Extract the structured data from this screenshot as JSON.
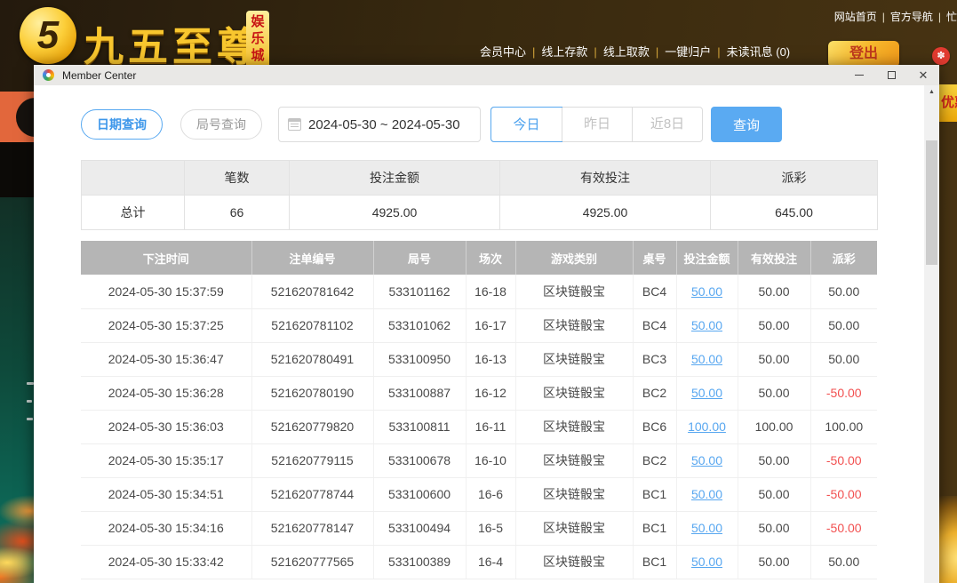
{
  "colors": {
    "accent_blue": "#57a8f0",
    "link_blue": "#58a7f0",
    "negative_red": "#f25050",
    "gold": "#f5c01e",
    "table_header_gray": "#b5b5b5"
  },
  "site_header": {
    "brand": {
      "logo_glyph": "5",
      "name": "九五至尊",
      "badge": "娱乐城"
    },
    "top_links": {
      "items": [
        "网站首页",
        "官方导航",
        "忙"
      ],
      "separator": "|"
    },
    "user_links": {
      "items": [
        "会员中心",
        "线上存款",
        "线上取款",
        "一键归户",
        "未读讯息 (0)"
      ],
      "separator": "|"
    },
    "logout_label": "登出",
    "flag_icon_glyph": "✽",
    "promo_tab_label": "优惠"
  },
  "window": {
    "title": "Member Center",
    "controls": {
      "minimize": "minimize",
      "maximize": "maximize",
      "close": "✕"
    },
    "filters": {
      "mode_date": "日期查询",
      "mode_round": "局号查询",
      "date_range": "2024-05-30 ~ 2024-05-30",
      "range_today": "今日",
      "range_yesterday": "昨日",
      "range_8days": "近8日",
      "query_label": "查询"
    },
    "summary": {
      "headers": [
        "",
        "笔数",
        "投注金额",
        "有效投注",
        "派彩"
      ],
      "total_label": "总计",
      "count": "66",
      "bet_amount": "4925.00",
      "valid_bet": "4925.00",
      "payout": "645.00"
    },
    "table": {
      "headers": [
        "下注时间",
        "注单编号",
        "局号",
        "场次",
        "游戏类别",
        "桌号",
        "投注金额",
        "有效投注",
        "派彩"
      ],
      "rows": [
        {
          "time": "2024-05-30 15:37:59",
          "bet_id": "521620781642",
          "round_id": "533101162",
          "session": "16-18",
          "game": "区块链骰宝",
          "table": "BC4",
          "bet": "50.00",
          "valid": "50.00",
          "payout": "50.00"
        },
        {
          "time": "2024-05-30 15:37:25",
          "bet_id": "521620781102",
          "round_id": "533101062",
          "session": "16-17",
          "game": "区块链骰宝",
          "table": "BC4",
          "bet": "50.00",
          "valid": "50.00",
          "payout": "50.00"
        },
        {
          "time": "2024-05-30 15:36:47",
          "bet_id": "521620780491",
          "round_id": "533100950",
          "session": "16-13",
          "game": "区块链骰宝",
          "table": "BC3",
          "bet": "50.00",
          "valid": "50.00",
          "payout": "50.00"
        },
        {
          "time": "2024-05-30 15:36:28",
          "bet_id": "521620780190",
          "round_id": "533100887",
          "session": "16-12",
          "game": "区块链骰宝",
          "table": "BC2",
          "bet": "50.00",
          "valid": "50.00",
          "payout": "-50.00"
        },
        {
          "time": "2024-05-30 15:36:03",
          "bet_id": "521620779820",
          "round_id": "533100811",
          "session": "16-11",
          "game": "区块链骰宝",
          "table": "BC6",
          "bet": "100.00",
          "valid": "100.00",
          "payout": "100.00"
        },
        {
          "time": "2024-05-30 15:35:17",
          "bet_id": "521620779115",
          "round_id": "533100678",
          "session": "16-10",
          "game": "区块链骰宝",
          "table": "BC2",
          "bet": "50.00",
          "valid": "50.00",
          "payout": "-50.00"
        },
        {
          "time": "2024-05-30 15:34:51",
          "bet_id": "521620778744",
          "round_id": "533100600",
          "session": "16-6",
          "game": "区块链骰宝",
          "table": "BC1",
          "bet": "50.00",
          "valid": "50.00",
          "payout": "-50.00"
        },
        {
          "time": "2024-05-30 15:34:16",
          "bet_id": "521620778147",
          "round_id": "533100494",
          "session": "16-5",
          "game": "区块链骰宝",
          "table": "BC1",
          "bet": "50.00",
          "valid": "50.00",
          "payout": "-50.00"
        },
        {
          "time": "2024-05-30 15:33:42",
          "bet_id": "521620777565",
          "round_id": "533100389",
          "session": "16-4",
          "game": "区块链骰宝",
          "table": "BC1",
          "bet": "50.00",
          "valid": "50.00",
          "payout": "50.00"
        }
      ]
    }
  }
}
